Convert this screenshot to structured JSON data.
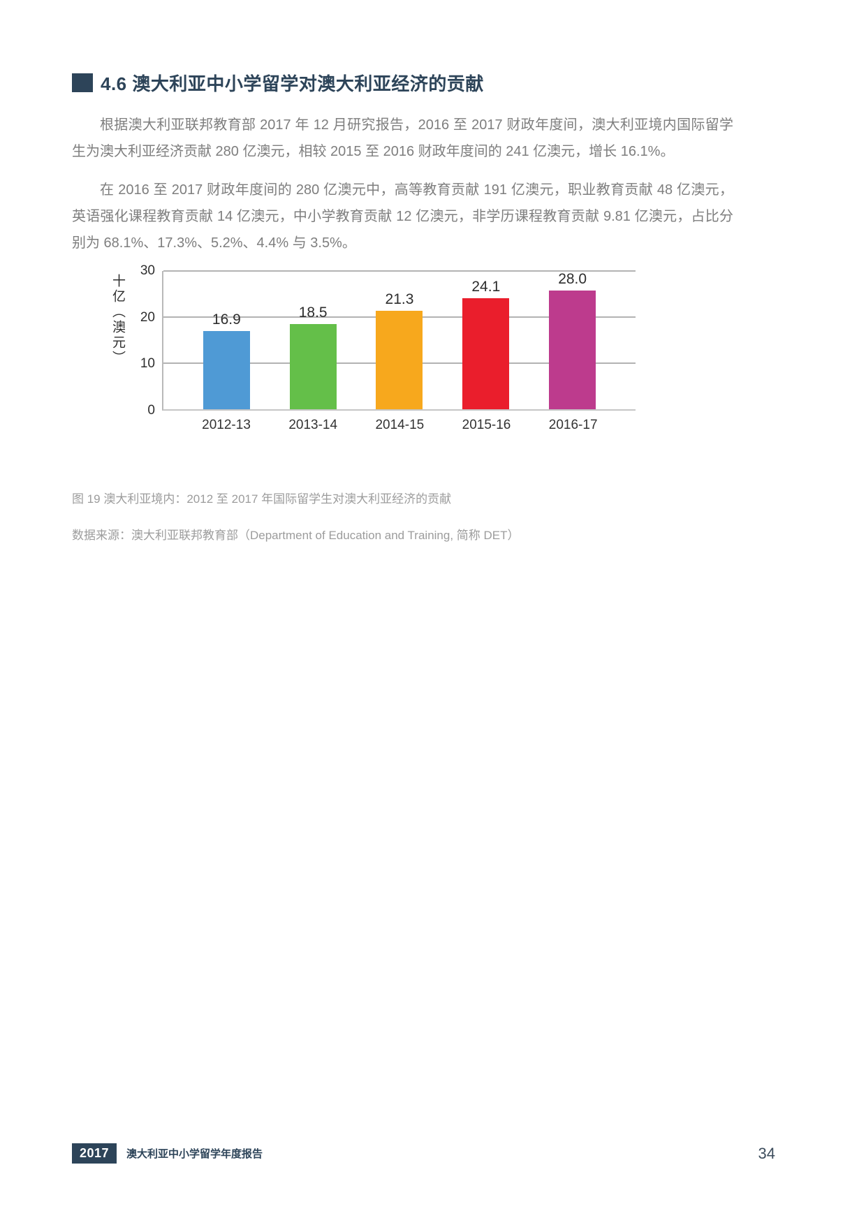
{
  "heading": {
    "text": "4.6 澳大利亚中小学留学对澳大利亚经济的贡献"
  },
  "paragraphs": {
    "p1": "根据澳大利亚联邦教育部 2017 年 12 月研究报告，2016 至 2017 财政年度间，澳大利亚境内国际留学生为澳大利亚经济贡献 280 亿澳元，相较 2015 至 2016 财政年度间的 241 亿澳元，增长 16.1%。",
    "p2": "在 2016 至 2017 财政年度间的 280 亿澳元中，高等教育贡献 191 亿澳元，职业教育贡献 48 亿澳元，英语强化课程教育贡献 14 亿澳元，中小学教育贡献 12 亿澳元，非学历课程教育贡献 9.81 亿澳元，占比分别为 68.1%、17.3%、5.2%、4.4% 与 3.5%。"
  },
  "chart_data": {
    "type": "bar",
    "title": "",
    "categories": [
      "2012-13",
      "2013-14",
      "2014-15",
      "2015-16",
      "2016-17"
    ],
    "values": [
      16.9,
      18.5,
      21.3,
      24.1,
      28.0
    ],
    "value_labels": [
      "16.9",
      "18.5",
      "21.3",
      "24.1",
      "28.0"
    ],
    "colors": [
      "#4f9ad5",
      "#64bf49",
      "#f7a81d",
      "#ea1e2c",
      "#bd3b8d"
    ],
    "xlabel": "",
    "ylabel": "十亿（澳元）",
    "ylim": [
      0,
      30
    ],
    "yticks": [
      0,
      10,
      20,
      30
    ],
    "grid": "horizontal",
    "legend": "none"
  },
  "caption": {
    "line1": "图 19 澳大利亚境内：2012 至 2017 年国际留学生对澳大利亚经济的贡献",
    "line2": "数据来源：澳大利亚联邦教育部（Department of Education and Training, 简称 DET）"
  },
  "footer": {
    "year_badge": "2017",
    "report_title": "澳大利亚中小学留学年度报告",
    "page_number": "34"
  }
}
